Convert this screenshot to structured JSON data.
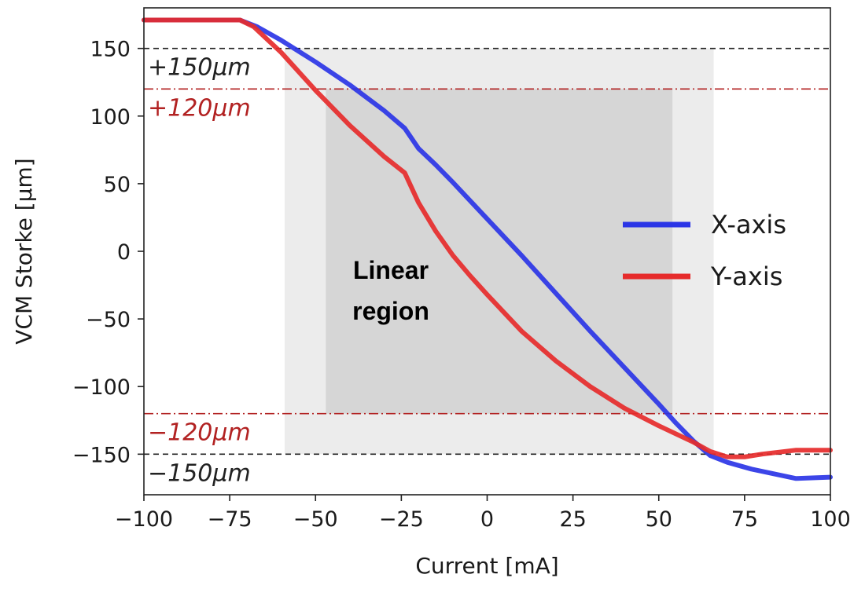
{
  "chart_data": {
    "type": "line",
    "xlabel": "Current [mA]",
    "ylabel": "VCM Storke  [μm]",
    "xlim": [
      -100,
      100
    ],
    "ylim": [
      -180,
      180
    ],
    "xticks": [
      -100,
      -75,
      -50,
      -25,
      0,
      25,
      50,
      75,
      100
    ],
    "yticks": [
      150,
      100,
      50,
      0,
      -50,
      -100,
      -150
    ],
    "xtick_labels": [
      "−100",
      "−75",
      "−50",
      "−25",
      "0",
      "25",
      "50",
      "75",
      "100"
    ],
    "ytick_labels": [
      "150",
      "100",
      "50",
      "0",
      "−50",
      "−100",
      "−150"
    ],
    "series": [
      {
        "name": "X-axis",
        "color": "#2b35e6",
        "x": [
          -100,
          -72,
          -67,
          -60,
          -50,
          -40,
          -30,
          -24,
          -20,
          -15,
          -10,
          0,
          10,
          20,
          30,
          40,
          50,
          55,
          60,
          65,
          70,
          77,
          90,
          100
        ],
        "y": [
          171,
          171,
          166,
          156,
          140,
          123,
          104,
          91,
          76,
          64,
          51,
          24,
          -3,
          -31,
          -59,
          -86,
          -113,
          -127,
          -140,
          -151,
          -156,
          -161,
          -168,
          -167
        ]
      },
      {
        "name": "Y-axis",
        "color": "#e62b2b",
        "x": [
          -100,
          -72,
          -68,
          -60,
          -50,
          -40,
          -30,
          -24,
          -20,
          -15,
          -10,
          -5,
          0,
          10,
          20,
          30,
          40,
          50,
          60,
          65,
          70,
          75,
          80,
          90,
          100
        ],
        "y": [
          171,
          171,
          166,
          147,
          119,
          93,
          70,
          58,
          36,
          15,
          -3,
          -18,
          -32,
          -59,
          -81,
          -100,
          -116,
          -129,
          -141,
          -148,
          -152,
          -152,
          -150,
          -147,
          -147
        ]
      }
    ],
    "reference_lines": [
      {
        "y": 150,
        "label": "+150μm",
        "style": "dashed",
        "color": "#222222"
      },
      {
        "y": 120,
        "label": "+120μm",
        "style": "dashdot",
        "color": "#b22222"
      },
      {
        "y": -120,
        "label": "−120μm",
        "style": "dashdot",
        "color": "#b22222"
      },
      {
        "y": -150,
        "label": "−150μm",
        "style": "dashed",
        "color": "#222222"
      }
    ],
    "shaded_regions": [
      {
        "x": [
          -59,
          66
        ],
        "y": [
          -150,
          150
        ],
        "color": "#ececec"
      },
      {
        "x": [
          -47,
          54
        ],
        "y": [
          -120,
          120
        ],
        "color": "#d6d6d6"
      }
    ],
    "annotations": [
      {
        "lines": [
          "Linear",
          "region"
        ]
      }
    ],
    "legend": {
      "position": "center-right"
    },
    "grid": false
  }
}
